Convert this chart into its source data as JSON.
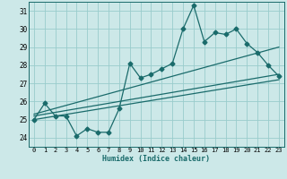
{
  "xlabel": "Humidex (Indice chaleur)",
  "xlim": [
    -0.5,
    23.5
  ],
  "ylim": [
    23.5,
    31.5
  ],
  "xticks": [
    0,
    1,
    2,
    3,
    4,
    5,
    6,
    7,
    8,
    9,
    10,
    11,
    12,
    13,
    14,
    15,
    16,
    17,
    18,
    19,
    20,
    21,
    22,
    23
  ],
  "yticks": [
    24,
    25,
    26,
    27,
    28,
    29,
    30,
    31
  ],
  "bg_color": "#cce8e8",
  "grid_color": "#99cccc",
  "line_color": "#1a6b6b",
  "line_width": 0.9,
  "marker": "D",
  "marker_size": 2.5,
  "series1_x": [
    0,
    1,
    2,
    3,
    4,
    5,
    6,
    7,
    8,
    9,
    10,
    11,
    12,
    13,
    14,
    15,
    16,
    17,
    18,
    19,
    20,
    21,
    22,
    23
  ],
  "series1_y": [
    25.0,
    25.9,
    25.2,
    25.2,
    24.1,
    24.5,
    24.3,
    24.3,
    25.6,
    28.1,
    27.3,
    27.5,
    27.8,
    28.1,
    30.0,
    31.3,
    29.3,
    29.8,
    29.7,
    30.0,
    29.2,
    28.7,
    28.0,
    27.4
  ],
  "line1_x": [
    0,
    23
  ],
  "line1_y": [
    25.0,
    27.2
  ],
  "line2_x": [
    0,
    23
  ],
  "line2_y": [
    25.2,
    27.5
  ],
  "line3_x": [
    0,
    23
  ],
  "line3_y": [
    25.3,
    29.0
  ]
}
